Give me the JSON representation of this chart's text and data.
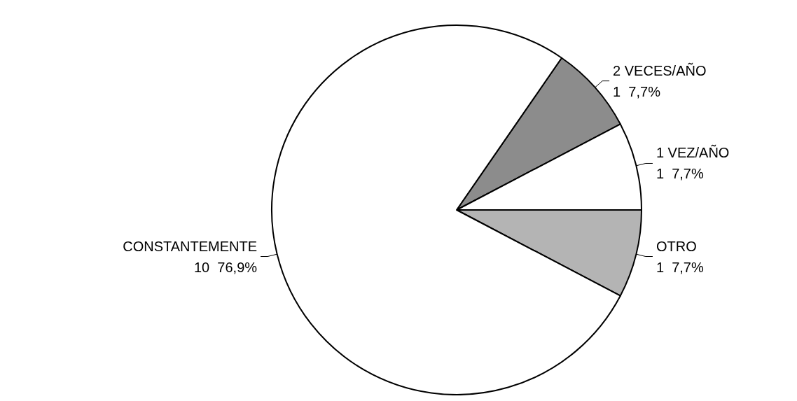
{
  "chart_data": {
    "type": "pie",
    "categories": [
      "2 VECES/AÑO",
      "1 VEZ/AÑO",
      "OTRO",
      "CONSTANTEMENTE"
    ],
    "values": [
      1,
      1,
      1,
      10
    ],
    "value_labels": [
      "1  7,7%",
      "1  7,7%",
      "1  7,7%",
      "10  76,9%"
    ],
    "colors": [
      "#8c8c8c",
      "#ffffff",
      "#b4b4b4",
      "#ffffff"
    ]
  }
}
